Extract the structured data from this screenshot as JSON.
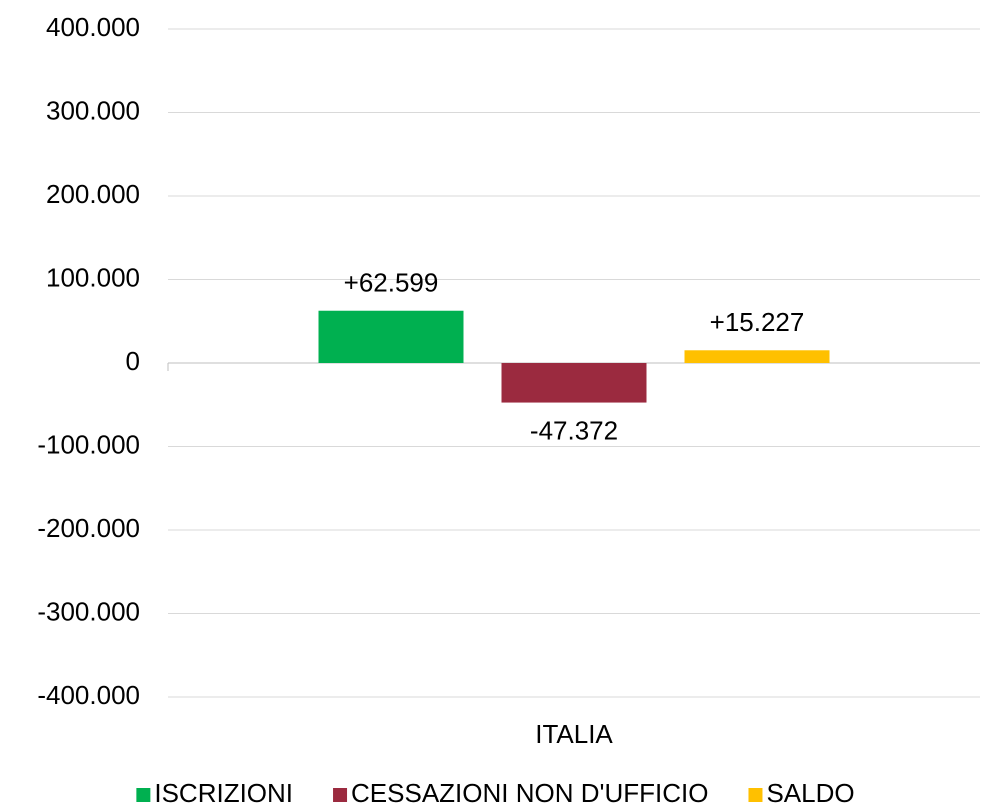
{
  "chart_data": {
    "type": "bar",
    "categories": [
      "ITALIA"
    ],
    "series": [
      {
        "name": "ISCRIZIONI",
        "color": "#00b050",
        "values": [
          62599
        ],
        "value_labels": [
          "+62.599"
        ]
      },
      {
        "name": "CESSAZIONI NON D'UFFICIO",
        "color": "#9b2a3f",
        "values": [
          -47372
        ],
        "value_labels": [
          "-47.372"
        ]
      },
      {
        "name": "SALDO",
        "color": "#ffc000",
        "values": [
          15227
        ],
        "value_labels": [
          "+15.227"
        ]
      }
    ],
    "ylim": [
      -400000,
      400000
    ],
    "yticks": [
      {
        "value": -400000,
        "label": "-400.000"
      },
      {
        "value": -300000,
        "label": "-300.000"
      },
      {
        "value": -200000,
        "label": "-200.000"
      },
      {
        "value": -100000,
        "label": "-100.000"
      },
      0,
      {
        "value": 100000,
        "label": "100.000"
      },
      {
        "value": 200000,
        "label": "200.000"
      },
      {
        "value": 300000,
        "label": "300.000"
      },
      {
        "value": 400000,
        "label": "400.000"
      }
    ],
    "grid": true,
    "legend": "bottom"
  }
}
